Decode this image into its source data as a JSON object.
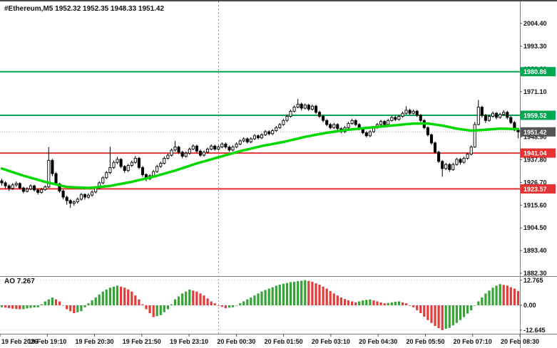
{
  "header": {
    "symbol_line": "#Ethereum,M5  1952.32 1952.35 1948.33 1951.42"
  },
  "colors": {
    "bg": "#ffffff",
    "bull": "#ffffff",
    "bear": "#000000",
    "candle_outline": "#000000",
    "ma": "#00d800",
    "level_green": "#00a651",
    "level_red": "#e63232",
    "price_badge": "#545454",
    "ao_green": "#36a336",
    "ao_red": "#e03c3c",
    "frame": "#808080",
    "separator": "#999999",
    "axis_text": "#111111"
  },
  "chart_data": {
    "type": "candlestick",
    "symbol": "#Ethereum",
    "timeframe": "M5",
    "ohlc_display": {
      "open": 1952.32,
      "high": 1952.35,
      "low": 1948.33,
      "close": 1951.42
    },
    "price_range": [
      1880.9,
      2015.2
    ],
    "price_axis": {
      "step": 11.1,
      "ticks": [
        "2004.40",
        "1993.30",
        "1982.20",
        "1971.10",
        "1960.00",
        "1948.90",
        "1937.80",
        "1926.70",
        "1915.60",
        "1904.50",
        "1893.40",
        "1882.30"
      ]
    },
    "levels": [
      {
        "price": 1980.86,
        "color": "#00a651",
        "kind": "resistance"
      },
      {
        "price": 1959.52,
        "color": "#00a651",
        "kind": "resistance"
      },
      {
        "price": 1941.04,
        "color": "#e63232",
        "kind": "support"
      },
      {
        "price": 1923.57,
        "color": "#e63232",
        "kind": "support"
      }
    ],
    "current_price": {
      "value": 1951.42
    },
    "day_separator_fraction": 0.4205,
    "x_labels": [
      "19 Feb 2026",
      "19 Feb 19:10",
      "19 Feb 20:30",
      "19 Feb 21:50",
      "19 Feb 23:10",
      "20 Feb 00:30",
      "20 Feb 01:50",
      "20 Feb 03:10",
      "20 Feb 04:30",
      "20 Feb 05:50",
      "20 Feb 07:10",
      "20 Feb 08:30"
    ],
    "candles": [
      [
        1927.5,
        1928.5,
        1925.2,
        1926.5
      ],
      [
        1926.5,
        1927.3,
        1923.8,
        1925.0
      ],
      [
        1925.0,
        1925.8,
        1922.5,
        1923.8
      ],
      [
        1923.8,
        1926.4,
        1923.0,
        1925.5
      ],
      [
        1925.5,
        1927.2,
        1924.6,
        1926.2
      ],
      [
        1926.2,
        1926.8,
        1923.2,
        1924.0
      ],
      [
        1924.0,
        1924.6,
        1921.4,
        1922.3
      ],
      [
        1922.3,
        1924.4,
        1921.8,
        1923.5
      ],
      [
        1923.5,
        1925.8,
        1922.9,
        1925.0
      ],
      [
        1925.0,
        1925.6,
        1922.2,
        1923.0
      ],
      [
        1923.0,
        1923.6,
        1920.8,
        1921.8
      ],
      [
        1921.8,
        1924.0,
        1921.2,
        1923.2
      ],
      [
        1923.2,
        1925.3,
        1922.6,
        1924.5
      ],
      [
        1924.5,
        1944.0,
        1924.0,
        1937.5
      ],
      [
        1937.5,
        1938.2,
        1929.8,
        1931.0
      ],
      [
        1931.0,
        1931.8,
        1925.2,
        1926.0
      ],
      [
        1926.0,
        1926.6,
        1921.5,
        1922.5
      ],
      [
        1922.5,
        1923.2,
        1918.4,
        1919.5
      ],
      [
        1919.5,
        1920.3,
        1915.8,
        1917.8
      ],
      [
        1917.8,
        1918.6,
        1914.2,
        1916.5
      ],
      [
        1916.5,
        1918.0,
        1915.3,
        1917.2
      ],
      [
        1917.2,
        1919.4,
        1916.4,
        1918.5
      ],
      [
        1918.5,
        1921.6,
        1917.8,
        1920.8
      ],
      [
        1920.8,
        1921.4,
        1918.3,
        1919.5
      ],
      [
        1919.5,
        1921.4,
        1918.7,
        1920.5
      ],
      [
        1920.5,
        1922.8,
        1919.8,
        1922.0
      ],
      [
        1922.0,
        1924.8,
        1921.3,
        1924.0
      ],
      [
        1924.0,
        1927.3,
        1923.4,
        1926.5
      ],
      [
        1926.5,
        1929.8,
        1925.8,
        1929.0
      ],
      [
        1929.0,
        1932.3,
        1928.4,
        1931.5
      ],
      [
        1931.5,
        1944.2,
        1930.8,
        1934.0
      ],
      [
        1934.0,
        1937.4,
        1933.3,
        1936.5
      ],
      [
        1936.5,
        1939.2,
        1935.6,
        1938.0
      ],
      [
        1938.0,
        1938.6,
        1933.6,
        1934.5
      ],
      [
        1934.5,
        1935.2,
        1931.4,
        1932.5
      ],
      [
        1932.5,
        1935.8,
        1931.8,
        1935.0
      ],
      [
        1935.0,
        1937.4,
        1934.3,
        1936.5
      ],
      [
        1936.5,
        1939.6,
        1935.8,
        1938.5
      ],
      [
        1938.5,
        1939.2,
        1933.2,
        1934.0
      ],
      [
        1934.0,
        1934.8,
        1929.4,
        1930.5
      ],
      [
        1930.5,
        1931.2,
        1927.3,
        1928.5
      ],
      [
        1928.5,
        1930.8,
        1927.8,
        1930.0
      ],
      [
        1930.0,
        1932.8,
        1929.3,
        1932.0
      ],
      [
        1932.0,
        1935.3,
        1931.4,
        1934.5
      ],
      [
        1934.5,
        1936.9,
        1933.8,
        1936.0
      ],
      [
        1936.0,
        1939.3,
        1935.4,
        1938.5
      ],
      [
        1938.5,
        1940.8,
        1937.8,
        1940.0
      ],
      [
        1940.0,
        1943.3,
        1939.4,
        1942.5
      ],
      [
        1942.5,
        1947.0,
        1941.8,
        1944.0
      ],
      [
        1944.0,
        1944.6,
        1940.6,
        1941.5
      ],
      [
        1941.5,
        1942.2,
        1938.6,
        1939.5
      ],
      [
        1939.5,
        1941.8,
        1938.8,
        1941.0
      ],
      [
        1941.0,
        1943.8,
        1940.3,
        1943.0
      ],
      [
        1943.0,
        1945.3,
        1942.4,
        1944.5
      ],
      [
        1944.5,
        1945.2,
        1941.2,
        1942.0
      ],
      [
        1942.0,
        1942.8,
        1939.2,
        1940.0
      ],
      [
        1940.0,
        1942.3,
        1939.3,
        1941.5
      ],
      [
        1941.5,
        1943.8,
        1940.8,
        1943.0
      ],
      [
        1943.0,
        1945.3,
        1942.4,
        1944.5
      ],
      [
        1944.5,
        1945.2,
        1942.2,
        1943.0
      ],
      [
        1943.0,
        1944.8,
        1942.3,
        1944.0
      ],
      [
        1944.0,
        1946.3,
        1943.4,
        1945.5
      ],
      [
        1945.5,
        1946.2,
        1943.2,
        1944.0
      ],
      [
        1944.0,
        1944.7,
        1941.7,
        1942.5
      ],
      [
        1942.5,
        1944.8,
        1941.9,
        1944.0
      ],
      [
        1944.0,
        1946.3,
        1943.4,
        1945.5
      ],
      [
        1945.5,
        1947.8,
        1944.9,
        1947.0
      ],
      [
        1947.0,
        1948.8,
        1946.3,
        1948.0
      ],
      [
        1948.0,
        1948.7,
        1945.7,
        1946.5
      ],
      [
        1946.5,
        1948.8,
        1945.9,
        1948.0
      ],
      [
        1948.0,
        1950.3,
        1947.4,
        1949.5
      ],
      [
        1949.5,
        1950.2,
        1947.7,
        1948.5
      ],
      [
        1948.5,
        1950.8,
        1947.9,
        1950.0
      ],
      [
        1950.0,
        1952.3,
        1949.4,
        1951.5
      ],
      [
        1951.5,
        1952.2,
        1949.7,
        1950.5
      ],
      [
        1950.5,
        1952.8,
        1949.9,
        1952.0
      ],
      [
        1952.0,
        1954.3,
        1951.4,
        1953.5
      ],
      [
        1953.5,
        1955.8,
        1952.9,
        1955.0
      ],
      [
        1955.0,
        1957.8,
        1954.4,
        1957.0
      ],
      [
        1957.0,
        1959.8,
        1956.3,
        1959.0
      ],
      [
        1959.0,
        1962.3,
        1958.4,
        1961.5
      ],
      [
        1961.5,
        1964.3,
        1960.9,
        1963.5
      ],
      [
        1963.5,
        1967.5,
        1962.9,
        1965.0
      ],
      [
        1965.0,
        1965.7,
        1961.9,
        1963.0
      ],
      [
        1963.0,
        1965.3,
        1962.4,
        1964.5
      ],
      [
        1964.5,
        1965.2,
        1961.6,
        1962.5
      ],
      [
        1962.5,
        1964.8,
        1961.9,
        1964.0
      ],
      [
        1964.0,
        1964.7,
        1960.2,
        1961.0
      ],
      [
        1961.0,
        1961.8,
        1958.2,
        1959.0
      ],
      [
        1959.0,
        1959.7,
        1956.2,
        1957.0
      ],
      [
        1957.0,
        1957.7,
        1954.2,
        1955.0
      ],
      [
        1955.0,
        1955.8,
        1952.7,
        1953.5
      ],
      [
        1953.5,
        1955.8,
        1952.9,
        1955.0
      ],
      [
        1955.0,
        1955.7,
        1952.2,
        1953.0
      ],
      [
        1953.0,
        1953.7,
        1950.7,
        1951.5
      ],
      [
        1951.5,
        1954.3,
        1950.9,
        1953.5
      ],
      [
        1953.5,
        1956.3,
        1952.9,
        1955.5
      ],
      [
        1955.5,
        1957.8,
        1954.9,
        1957.0
      ],
      [
        1957.0,
        1957.7,
        1954.2,
        1955.0
      ],
      [
        1955.0,
        1955.7,
        1952.2,
        1953.0
      ],
      [
        1953.0,
        1953.7,
        1950.2,
        1951.0
      ],
      [
        1951.0,
        1951.8,
        1948.7,
        1949.5
      ],
      [
        1949.5,
        1952.3,
        1948.9,
        1951.5
      ],
      [
        1951.5,
        1954.3,
        1950.9,
        1953.5
      ],
      [
        1953.5,
        1955.8,
        1952.9,
        1955.0
      ],
      [
        1955.0,
        1957.3,
        1954.4,
        1956.5
      ],
      [
        1956.5,
        1957.2,
        1954.2,
        1955.0
      ],
      [
        1955.0,
        1957.8,
        1954.4,
        1957.0
      ],
      [
        1957.0,
        1959.3,
        1956.4,
        1958.5
      ],
      [
        1958.5,
        1959.2,
        1956.7,
        1957.5
      ],
      [
        1957.5,
        1959.8,
        1956.9,
        1959.0
      ],
      [
        1959.0,
        1961.3,
        1958.4,
        1960.5
      ],
      [
        1960.5,
        1964.0,
        1959.9,
        1962.0
      ],
      [
        1962.0,
        1962.7,
        1959.7,
        1960.5
      ],
      [
        1960.5,
        1962.3,
        1959.9,
        1961.5
      ],
      [
        1961.5,
        1962.2,
        1958.7,
        1959.5
      ],
      [
        1959.5,
        1960.2,
        1956.2,
        1957.0
      ],
      [
        1957.0,
        1957.7,
        1952.7,
        1953.5
      ],
      [
        1953.5,
        1954.2,
        1949.2,
        1950.0
      ],
      [
        1950.0,
        1950.7,
        1945.2,
        1946.0
      ],
      [
        1946.0,
        1946.7,
        1940.7,
        1941.5
      ],
      [
        1941.5,
        1942.2,
        1936.2,
        1937.0
      ],
      [
        1937.0,
        1937.7,
        1929.5,
        1933.5
      ],
      [
        1933.5,
        1936.3,
        1932.7,
        1935.5
      ],
      [
        1935.5,
        1936.2,
        1931.9,
        1933.0
      ],
      [
        1933.0,
        1936.3,
        1932.4,
        1935.5
      ],
      [
        1935.5,
        1938.8,
        1934.9,
        1938.0
      ],
      [
        1938.0,
        1938.7,
        1935.4,
        1936.5
      ],
      [
        1936.5,
        1939.3,
        1935.9,
        1938.5
      ],
      [
        1938.5,
        1941.3,
        1937.9,
        1940.5
      ],
      [
        1940.5,
        1944.8,
        1939.9,
        1944.0
      ],
      [
        1944.0,
        1956.3,
        1943.6,
        1955.0
      ],
      [
        1955.0,
        1967.0,
        1954.6,
        1963.5
      ],
      [
        1963.5,
        1964.2,
        1958.4,
        1959.5
      ],
      [
        1959.5,
        1960.2,
        1955.8,
        1957.0
      ],
      [
        1957.0,
        1959.8,
        1956.4,
        1959.0
      ],
      [
        1959.0,
        1961.3,
        1958.4,
        1960.5
      ],
      [
        1960.5,
        1961.2,
        1957.6,
        1958.5
      ],
      [
        1958.5,
        1960.8,
        1957.9,
        1960.0
      ],
      [
        1960.0,
        1962.0,
        1959.3,
        1961.0
      ],
      [
        1961.0,
        1961.7,
        1957.6,
        1958.5
      ],
      [
        1958.5,
        1959.2,
        1955.2,
        1956.0
      ],
      [
        1956.0,
        1956.7,
        1951.8,
        1952.3
      ],
      [
        1952.32,
        1952.35,
        1948.33,
        1951.42
      ]
    ],
    "ma_points": [
      [
        0,
        1933.5
      ],
      [
        6,
        1930
      ],
      [
        12,
        1927
      ],
      [
        18,
        1924.5
      ],
      [
        24,
        1924
      ],
      [
        30,
        1925
      ],
      [
        36,
        1927
      ],
      [
        42,
        1929.5
      ],
      [
        48,
        1932.5
      ],
      [
        54,
        1936
      ],
      [
        60,
        1939
      ],
      [
        66,
        1942
      ],
      [
        72,
        1944.5
      ],
      [
        78,
        1946.5
      ],
      [
        84,
        1949
      ],
      [
        90,
        1951
      ],
      [
        96,
        1952.5
      ],
      [
        102,
        1953.5
      ],
      [
        108,
        1954.5
      ],
      [
        114,
        1955.5
      ],
      [
        118,
        1955.5
      ],
      [
        122,
        1954.5
      ],
      [
        126,
        1953
      ],
      [
        130,
        1952
      ],
      [
        134,
        1952.5
      ],
      [
        138,
        1953
      ],
      [
        143,
        1952.8
      ]
    ],
    "ao_range": [
      -14.5,
      14.5
    ],
    "ao": {
      "title": "AO 7.267",
      "name": "AO",
      "value": 7.267,
      "type": "histogram",
      "scale": [
        {
          "value": 12.765,
          "label": "12.765"
        },
        {
          "value": 0,
          "label": "0.00"
        },
        {
          "value": -12.645,
          "label": "-12.645"
        }
      ],
      "values": [
        -1.0,
        -1.2,
        -1.4,
        -1.7,
        -1.9,
        -2.0,
        -2.0,
        -1.6,
        -1.3,
        -1.1,
        -1.0,
        0.5,
        2.0,
        3.0,
        4.0,
        3.0,
        2.0,
        0.0,
        -2.0,
        -3.0,
        -4.0,
        -3.5,
        -3.0,
        -1.0,
        1.0,
        2.5,
        4.0,
        5.5,
        7.0,
        8.0,
        9.0,
        9.5,
        10.0,
        9.5,
        9.0,
        8.0,
        7.0,
        5.0,
        3.0,
        0.5,
        -2.0,
        -4.0,
        -6.0,
        -5.5,
        -5.0,
        -3.5,
        -2.0,
        0.5,
        3.0,
        4.5,
        6.0,
        7.0,
        8.0,
        7.5,
        7.0,
        6.0,
        5.0,
        3.5,
        2.0,
        1.0,
        0.0,
        -0.8,
        -1.5,
        -1.2,
        -1.0,
        0.0,
        1.0,
        2.0,
        3.0,
        4.0,
        5.0,
        6.0,
        7.0,
        7.8,
        8.5,
        9.2,
        10.0,
        10.5,
        11.0,
        11.4,
        11.8,
        12.0,
        12.3,
        12.5,
        12.765,
        12.4,
        12.0,
        11.2,
        10.5,
        9.5,
        8.5,
        7.2,
        6.0,
        5.0,
        4.0,
        3.2,
        2.5,
        2.0,
        1.5,
        2.0,
        2.5,
        2.8,
        3.0,
        2.5,
        2.0,
        1.5,
        1.0,
        1.2,
        1.5,
        1.8,
        2.0,
        1.5,
        1.0,
        0.0,
        -1.0,
        -2.5,
        -4.0,
        -5.8,
        -7.5,
        -9.0,
        -10.5,
        -11.6,
        -12.645,
        -12.0,
        -11.5,
        -10.2,
        -9.0,
        -7.5,
        -6.0,
        -4.2,
        -2.5,
        -0.2,
        2.0,
        4.0,
        6.0,
        7.5,
        9.0,
        10.0,
        10.8,
        10.4,
        10.0,
        9.2,
        8.5,
        7.267
      ]
    }
  }
}
